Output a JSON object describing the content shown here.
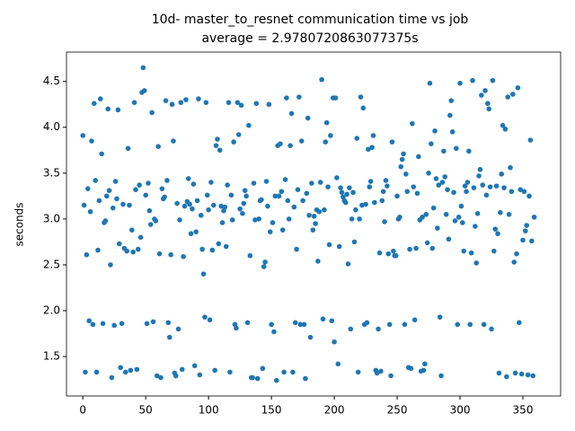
{
  "chart_data": {
    "type": "scatter",
    "title": "10d- master_to_resnet communication time vs job",
    "subtitle": "average = 2.9780720863077375s",
    "y_label": "seconds",
    "color": "#1f77b4",
    "xlim": [
      -13,
      380
    ],
    "ylim": [
      1.07,
      4.82
    ],
    "xticks": [
      0,
      50,
      100,
      150,
      200,
      250,
      300,
      350
    ],
    "yticks": [
      1.5,
      {
        "value": 2,
        "label": "2.0"
      },
      2.5,
      {
        "value": 3,
        "label": "3.0"
      },
      3.5,
      {
        "value": 4,
        "label": "4.0"
      },
      4.5
    ],
    "x": [
      0,
      1,
      2,
      3,
      4,
      5,
      6,
      7,
      8,
      9,
      10,
      11,
      12,
      13,
      14,
      15,
      16,
      17,
      18,
      19,
      20,
      21,
      22,
      23,
      24,
      25,
      26,
      27,
      28,
      29,
      30,
      31,
      32,
      33,
      34,
      35,
      36,
      37,
      38,
      39,
      40,
      41,
      42,
      43,
      44,
      45,
      46,
      47,
      48,
      49,
      50,
      51,
      52,
      53,
      54,
      55,
      56,
      57,
      58,
      59,
      60,
      61,
      62,
      63,
      64,
      65,
      66,
      67,
      68,
      69,
      70,
      71,
      72,
      73,
      74,
      75,
      76,
      77,
      78,
      79,
      80,
      81,
      82,
      83,
      84,
      85,
      86,
      87,
      88,
      89,
      90,
      91,
      92,
      93,
      94,
      95,
      96,
      97,
      98,
      99,
      100,
      101,
      102,
      103,
      104,
      105,
      106,
      107,
      108,
      109,
      110,
      111,
      112,
      113,
      114,
      115,
      116,
      117,
      118,
      119,
      120,
      121,
      122,
      123,
      124,
      125,
      126,
      127,
      128,
      129,
      130,
      131,
      132,
      133,
      134,
      135,
      136,
      137,
      138,
      139,
      140,
      141,
      142,
      143,
      144,
      145,
      146,
      147,
      148,
      149,
      150,
      151,
      152,
      153,
      154,
      155,
      156,
      157,
      158,
      159,
      160,
      161,
      162,
      163,
      164,
      165,
      166,
      167,
      168,
      169,
      170,
      171,
      172,
      173,
      174,
      175,
      176,
      177,
      178,
      179,
      180,
      181,
      182,
      183,
      184,
      185,
      186,
      187,
      188,
      189,
      190,
      191,
      192,
      193,
      194,
      195,
      196,
      197,
      198,
      199,
      200,
      201,
      202,
      203,
      204,
      205,
      206,
      207,
      208,
      209,
      210,
      211,
      212,
      213,
      214,
      215,
      216,
      217,
      218,
      219,
      220,
      221,
      222,
      223,
      224,
      225,
      226,
      227,
      228,
      229,
      230,
      231,
      232,
      233,
      234,
      235,
      236,
      237,
      238,
      239,
      240,
      241,
      242,
      243,
      244,
      245,
      246,
      247,
      248,
      249,
      250,
      251,
      252,
      253,
      254,
      255,
      256,
      257,
      258,
      259,
      260,
      261,
      262,
      263,
      264,
      265,
      266,
      267,
      268,
      269,
      270,
      271,
      272,
      273,
      274,
      275,
      276,
      277,
      278,
      279,
      280,
      281,
      282,
      283,
      284,
      285,
      286,
      287,
      288,
      289,
      290,
      291,
      292,
      293,
      294,
      295,
      296,
      297,
      298,
      299,
      300,
      301,
      302,
      303,
      304,
      305,
      306,
      307,
      308,
      309,
      310,
      311,
      312,
      313,
      314,
      315,
      316,
      317,
      318,
      319,
      320,
      321,
      322,
      323,
      324,
      325,
      326,
      327,
      328,
      329,
      330,
      331,
      332,
      333,
      334,
      335,
      336,
      337,
      338,
      339,
      340,
      341,
      342,
      343,
      344,
      345,
      346,
      347,
      348,
      349,
      350,
      351,
      352,
      353,
      354,
      355,
      356,
      357,
      358,
      359
    ],
    "values": [
      3.91,
      3.15,
      1.33,
      2.61,
      3.33,
      1.89,
      3.08,
      3.85,
      1.85,
      4.26,
      3.42,
      1.33,
      2.66,
      3.2,
      4.31,
      3.71,
      1.86,
      2.96,
      2.98,
      3.25,
      4.2,
      3.31,
      2.5,
      1.27,
      3.12,
      1.84,
      3.41,
      3.22,
      4.19,
      2.73,
      1.38,
      1.86,
      3.16,
      2.68,
      1.33,
      2.65,
      3.77,
      3.15,
      1.35,
      2.88,
      2.64,
      4.27,
      3.32,
      1.36,
      2.67,
      3.37,
      2.8,
      4.38,
      4.65,
      4.4,
      3.26,
      1.86,
      3.39,
      3.09,
      2.94,
      4.16,
      1.88,
      3.0,
      2.98,
      1.29,
      3.79,
      2.62,
      1.27,
      3.33,
      3.22,
      3.24,
      4.29,
      3.42,
      1.87,
      1.71,
      2.61,
      4.25,
      3.85,
      1.32,
      1.29,
      3.17,
      1.8,
      2.99,
      4.27,
      1.36,
      2.59,
      3.14,
      4.3,
      3.19,
      3.44,
      3.16,
      2.84,
      3.11,
      3.38,
      1.4,
      2.86,
      3.2,
      4.31,
      1.3,
      3.04,
      2.67,
      2.4,
      1.93,
      4.27,
      3.26,
      3.1,
      1.9,
      3.4,
      2.66,
      3.15,
      1.35,
      3.8,
      3.87,
      2.73,
      3.75,
      3.14,
      2.96,
      3.09,
      3.13,
      2.7,
      3.37,
      4.27,
      1.33,
      3.26,
      2.99,
      3.84,
      1.85,
      1.81,
      4.27,
      3.92,
      3.11,
      4.24,
      3.06,
      3.17,
      3.31,
      3.25,
      1.87,
      4.02,
      2.6,
      1.27,
      1.27,
      3.39,
      2.99,
      4.26,
      1.26,
      3.0,
      3.2,
      3.21,
      1.37,
      2.48,
      2.53,
      3.41,
      3.14,
      4.25,
      2.86,
      1.85,
      2.96,
      1.77,
      3.25,
      1.24,
      3.8,
      3.25,
      3.82,
      3.3,
      2.88,
      1.33,
      3.43,
      4.32,
      3.2,
      3.0,
      3.8,
      4.15,
      1.33,
      3.13,
      1.87,
      2.67,
      3.32,
      4.33,
      1.85,
      3.85,
      3.2,
      1.85,
      1.26,
      3.28,
      4.1,
      3.04,
      1.71,
      3.39,
      2.88,
      3.03,
      2.95,
      3.1,
      2.54,
      3.08,
      3.4,
      4.52,
      1.91,
      3.1,
      3.84,
      4.05,
      3.35,
      2.72,
      3.91,
      1.89,
      4.32,
      1.66,
      4.32,
      3.45,
      1.42,
      2.7,
      3.34,
      3.29,
      3.24,
      3.2,
      3.18,
      3.27,
      2.51,
      3.34,
      1.8,
      3.0,
      3.29,
      2.75,
      3.1,
      3.88,
      1.33,
      3.0,
      4.33,
      3.15,
      4.21,
      1.85,
      3.16,
      1.87,
      3.76,
      3.35,
      3.41,
      3.78,
      3.91,
      3.18,
      1.35,
      1.32,
      1.8,
      2.63,
      1.34,
      3.2,
      3.3,
      2.97,
      3.42,
      3.36,
      2.62,
      1.85,
      1.29,
      3.84,
      2.65,
      2.6,
      2.6,
      3.25,
      3.0,
      3.02,
      3.57,
      3.65,
      3.71,
      1.85,
      3.49,
      3.3,
      1.38,
      2.67,
      1.37,
      4.04,
      3.35,
      1.9,
      2.68,
      3.28,
      3.68,
      2.99,
      1.34,
      3.02,
      1.35,
      1.42,
      3.05,
      2.74,
      3.5,
      4.48,
      3.82,
      2.68,
      3.12,
      3.96,
      3.44,
      2.9,
      3.37,
      1.93,
      1.29,
      3.4,
      3.74,
      3.46,
      3.05,
      3.32,
      2.78,
      4.13,
      4.29,
      3.95,
      3.29,
      2.98,
      3.77,
      1.85,
      3.02,
      4.48,
      3.14,
      2.96,
      2.65,
      3.36,
      3.3,
      3.4,
      3.74,
      1.85,
      2.63,
      4.51,
      3.34,
      2.92,
      2.52,
      3.06,
      3.47,
      3.54,
      4.35,
      3.37,
      1.85,
      4.4,
      3.26,
      4.26,
      4.2,
      3.35,
      1.8,
      4.51,
      2.65,
      2.89,
      3.36,
      2.84,
      1.32,
      3.07,
      3.49,
      4.02,
      3.34,
      3.98,
      1.28,
      4.33,
      3.05,
      3.56,
      3.3,
      4.36,
      2.53,
      1.32,
      2.62,
      4.43,
      1.87,
      3.32,
      1.31,
      2.77,
      3.3,
      2.87,
      2.93,
      1.3,
      3.25,
      3.86,
      2.76,
      1.29,
      3.02
    ]
  }
}
